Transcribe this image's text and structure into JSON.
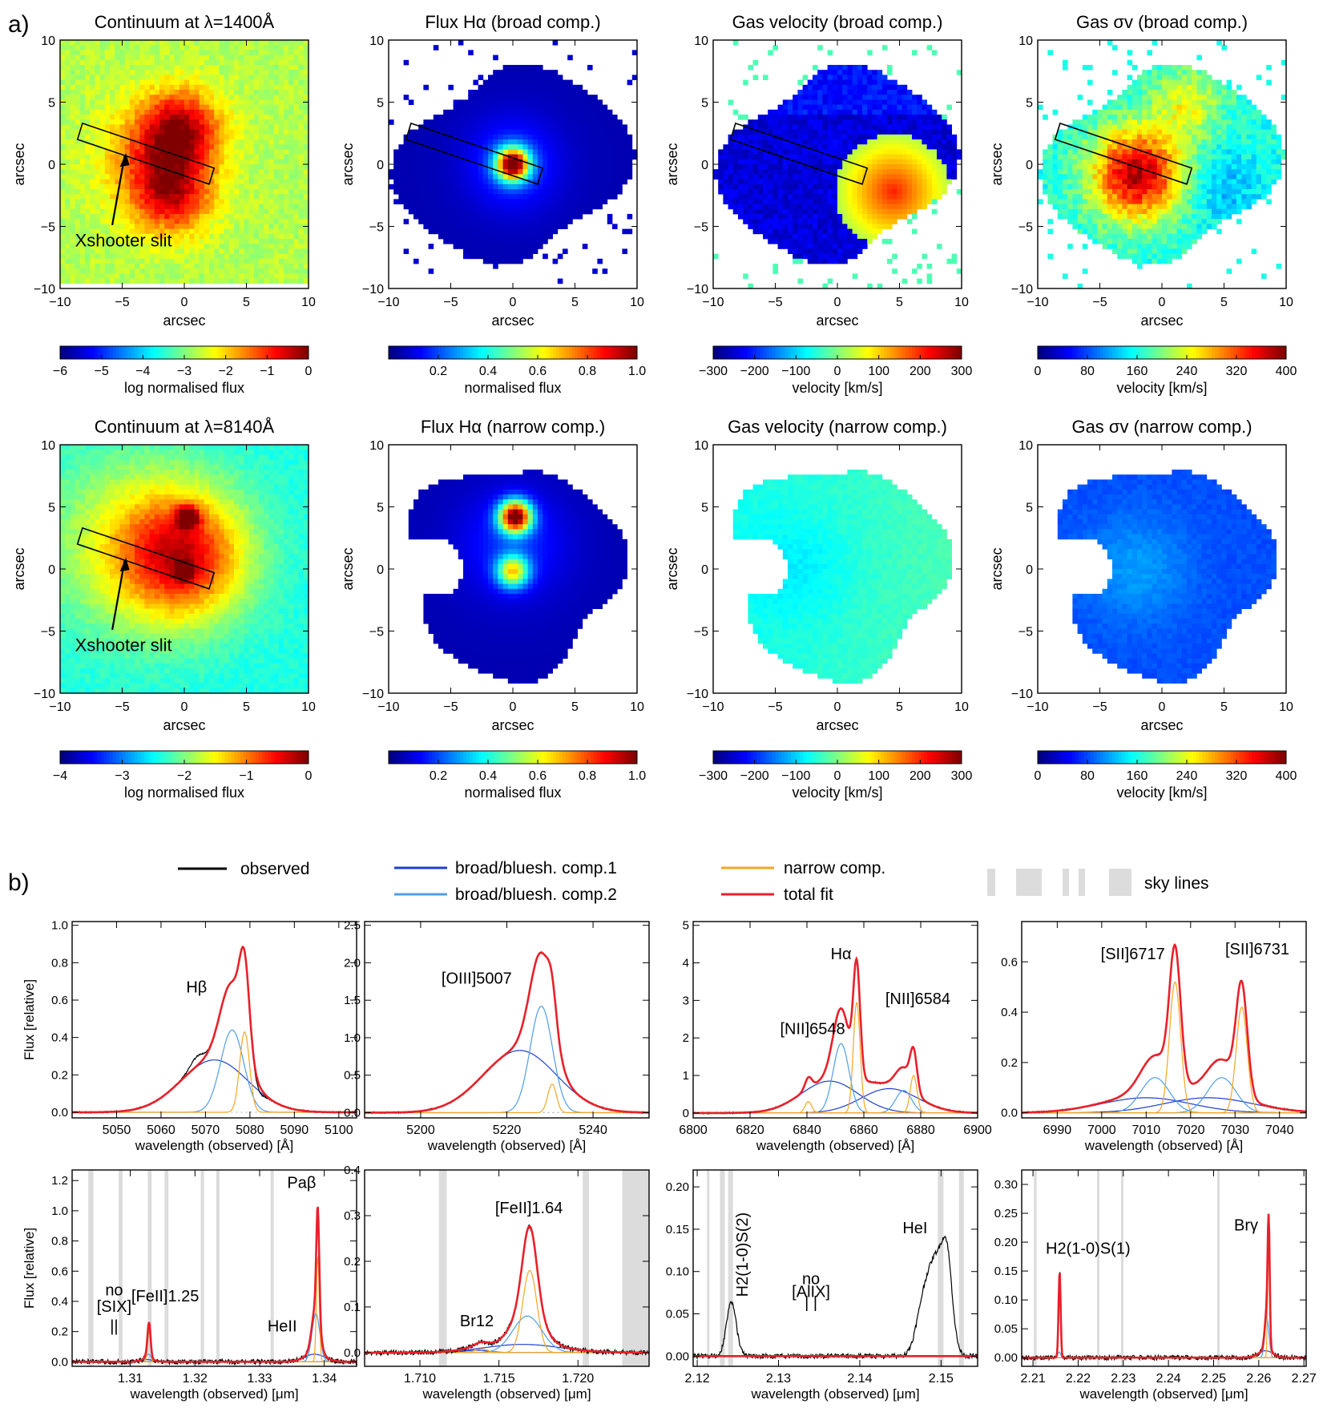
{
  "section_labels": {
    "a": "a)",
    "b": "b)"
  },
  "colors": {
    "observed": "#000000",
    "broad1": "#1f3fd0",
    "broad2": "#4f9ee8",
    "narrow": "#f5a623",
    "total": "#e8202a",
    "sky": "#dcdcdc"
  },
  "maps": {
    "axis_label": "arcsec",
    "ticks": [
      "−10",
      "−5",
      "0",
      "5",
      "10"
    ],
    "panels": [
      {
        "title": "Continuum at λ=1400Å",
        "kind": "cont_uv",
        "slit": true,
        "slit_label": "Xshooter slit"
      },
      {
        "title": "Flux Hα (broad comp.)",
        "kind": "flux_broad",
        "slit": true
      },
      {
        "title": "Gas velocity (broad comp.)",
        "kind": "vel_broad",
        "slit": true
      },
      {
        "title": "Gas σv (broad comp.)",
        "kind": "sig_broad",
        "slit": true
      },
      {
        "title": "Continuum at λ=8140Å",
        "kind": "cont_opt",
        "slit": true,
        "slit_label": "Xshooter slit"
      },
      {
        "title": "Flux Hα (narrow comp.)",
        "kind": "flux_narrow",
        "slit": false
      },
      {
        "title": "Gas velocity (narrow comp.)",
        "kind": "vel_narrow",
        "slit": false
      },
      {
        "title": "Gas σv (narrow comp.)",
        "kind": "sig_narrow",
        "slit": false
      }
    ],
    "colorbars": [
      {
        "label": "log normalised flux",
        "ticks": [
          "−6",
          "−5",
          "−4",
          "−3",
          "−2",
          "−1",
          "0"
        ]
      },
      {
        "label": "normalised flux",
        "ticks": [
          "0.2",
          "0.4",
          "0.6",
          "0.8",
          "1.0"
        ]
      },
      {
        "label": "velocity [km/s]",
        "ticks": [
          "−300",
          "−200",
          "−100",
          "0",
          "100",
          "200",
          "300"
        ]
      },
      {
        "label": "velocity [km/s]",
        "ticks": [
          "0",
          "80",
          "160",
          "240",
          "320",
          "400"
        ]
      },
      {
        "label": "log normalised flux",
        "ticks": [
          "−4",
          "−3",
          "−2",
          "−1",
          "0"
        ]
      },
      {
        "label": "normalised flux",
        "ticks": [
          "0.2",
          "0.4",
          "0.6",
          "0.8",
          "1.0"
        ]
      },
      {
        "label": "velocity [km/s]",
        "ticks": [
          "−300",
          "−200",
          "−100",
          "0",
          "100",
          "200",
          "300"
        ]
      },
      {
        "label": "velocity [km/s]",
        "ticks": [
          "0",
          "80",
          "160",
          "240",
          "320",
          "400"
        ]
      }
    ]
  },
  "legend": {
    "observed": "observed",
    "broad1": "broad/bluesh. comp.1",
    "broad2": "broad/bluesh. comp.2",
    "narrow": "narrow comp.",
    "total": "total fit",
    "sky": "sky lines"
  },
  "chart_data": [
    {
      "type": "line",
      "xlabel": "wavelength (observed) [Å]",
      "ylabel": "Flux [relative]",
      "xlim": [
        5040,
        5104
      ],
      "ylim": [
        -0.03,
        1.02
      ],
      "xticks": [
        5050,
        5060,
        5070,
        5080,
        5090,
        5100
      ],
      "xtick_labels": [
        "5050",
        "5060",
        "5070",
        "5080",
        "5090",
        "5100"
      ],
      "yticks": [
        0,
        0.2,
        0.4,
        0.6,
        0.8,
        1.0
      ],
      "ytick_labels": [
        "0.0",
        "0.2",
        "0.4",
        "0.6",
        "0.8",
        "1.0"
      ],
      "annotations": [
        {
          "text": "Hβ",
          "x": 5068,
          "y": 0.64
        }
      ],
      "components": {
        "broad1": [
          [
            0.28,
            5072,
            7.5
          ]
        ],
        "broad2": [
          [
            0.44,
            5076,
            2.6
          ]
        ],
        "narrow": [
          [
            0.43,
            5078.8,
            1.1
          ]
        ]
      },
      "sky": []
    },
    {
      "type": "line",
      "xlabel": "wavelength (observed) [Å]",
      "ylabel": "",
      "xlim": [
        5187,
        5253
      ],
      "ylim": [
        -0.07,
        2.55
      ],
      "xticks": [
        5200,
        5220,
        5240
      ],
      "xtick_labels": [
        "5200",
        "5220",
        "5240"
      ],
      "yticks": [
        0,
        0.5,
        1.0,
        1.5,
        2.0,
        2.5
      ],
      "ytick_labels": [
        "0.0",
        "0.5",
        "1.0",
        "1.5",
        "2.0",
        "2.5"
      ],
      "annotations": [
        {
          "text": "[OIII]5007",
          "x": 5213,
          "y": 1.72
        }
      ],
      "components": {
        "broad1": [
          [
            0.83,
            5223,
            8.5
          ]
        ],
        "broad2": [
          [
            1.42,
            5228,
            2.6
          ]
        ],
        "narrow": [
          [
            0.38,
            5230.5,
            1.0
          ]
        ]
      },
      "sky": []
    },
    {
      "type": "line",
      "xlabel": "wavelength (observed) [Å]",
      "ylabel": "",
      "xlim": [
        6800,
        6900
      ],
      "ylim": [
        -0.13,
        5.1
      ],
      "xticks": [
        6800,
        6820,
        6840,
        6860,
        6880,
        6900
      ],
      "xtick_labels": [
        "6800",
        "6820",
        "6840",
        "6860",
        "6880",
        "6900"
      ],
      "yticks": [
        0,
        1,
        2,
        3,
        4,
        5
      ],
      "ytick_labels": [
        "0",
        "1",
        "2",
        "3",
        "4",
        "5"
      ],
      "annotations": [
        {
          "text": "Hα",
          "x": 6852,
          "y": 4.1
        },
        {
          "text": "[NII]6548",
          "x": 6842,
          "y": 2.1
        },
        {
          "text": "[NII]6584",
          "x": 6879,
          "y": 2.9
        }
      ],
      "components": {
        "broad1": [
          [
            0.85,
            6848,
            10
          ],
          [
            0.65,
            6869,
            10
          ]
        ],
        "broad2": [
          [
            1.85,
            6852,
            2.8
          ],
          [
            0.6,
            6874,
            2.8
          ]
        ],
        "narrow": [
          [
            0.3,
            6840.5,
            1.2
          ],
          [
            2.95,
            6857.5,
            1.2
          ],
          [
            1.0,
            6877.5,
            1.2
          ]
        ]
      },
      "sky": []
    },
    {
      "type": "line",
      "xlabel": "wavelength (observed) [Å]",
      "ylabel": "",
      "xlim": [
        6982,
        7046
      ],
      "ylim": [
        -0.02,
        0.76
      ],
      "xticks": [
        6990,
        7000,
        7010,
        7020,
        7030,
        7040
      ],
      "xtick_labels": [
        "6990",
        "7000",
        "7010",
        "7020",
        "7030",
        "7040"
      ],
      "yticks": [
        0,
        0.2,
        0.4,
        0.6
      ],
      "ytick_labels": [
        "0.0",
        "0.2",
        "0.4",
        "0.6"
      ],
      "annotations": [
        {
          "text": "[SII]6717",
          "x": 7007,
          "y": 0.61
        },
        {
          "text": "[SII]6731",
          "x": 7035,
          "y": 0.63
        }
      ],
      "components": {
        "broad1": [
          [
            0.06,
            7010,
            10
          ],
          [
            0.06,
            7024,
            10
          ]
        ],
        "broad2": [
          [
            0.14,
            7012,
            3.2
          ],
          [
            0.14,
            7027,
            3.2
          ]
        ],
        "narrow": [
          [
            0.52,
            7016.5,
            1.25
          ],
          [
            0.42,
            7031.5,
            1.25
          ]
        ]
      },
      "sky": []
    },
    {
      "type": "line",
      "xlabel": "wavelength (observed) [μm]",
      "ylabel": "Flux [relative]",
      "xlim": [
        1.301,
        1.345
      ],
      "ylim": [
        -0.03,
        1.27
      ],
      "xticks": [
        1.31,
        1.32,
        1.33,
        1.34
      ],
      "xtick_labels": [
        "1.31",
        "1.32",
        "1.33",
        "1.34"
      ],
      "yticks": [
        0,
        0.2,
        0.4,
        0.6,
        0.8,
        1.0,
        1.2
      ],
      "ytick_labels": [
        "0.0",
        "0.2",
        "0.4",
        "0.6",
        "0.8",
        "1.0",
        "1.2"
      ],
      "annotations": [
        {
          "text": "Paβ",
          "x": 1.3365,
          "y": 1.15
        },
        {
          "text": "HeII",
          "x": 1.3335,
          "y": 0.2
        },
        {
          "text": "[FeII]1.25",
          "x": 1.3154,
          "y": 0.4
        },
        {
          "text": "no",
          "x": 1.3075,
          "y": 0.44
        },
        {
          "text": "[SIX]",
          "x": 1.3075,
          "y": 0.33
        },
        {
          "text": "||",
          "x": 1.3075,
          "y": 0.2
        }
      ],
      "components": {
        "broad1": [
          [
            0.05,
            1.3385,
            0.0016
          ],
          [
            0.015,
            1.3125,
            0.001
          ]
        ],
        "broad2": [
          [
            0.32,
            1.3387,
            0.0006
          ],
          [
            0.05,
            1.3128,
            0.0004
          ]
        ],
        "narrow": [
          [
            0.7,
            1.339,
            0.00022
          ],
          [
            0.2,
            1.3129,
            0.00022
          ]
        ]
      },
      "sky": [
        [
          1.3035,
          1.3043
        ],
        [
          1.3082,
          1.3088
        ],
        [
          1.3127,
          1.3133
        ],
        [
          1.3153,
          1.3159
        ],
        [
          1.3209,
          1.3214
        ],
        [
          1.3233,
          1.3238
        ],
        [
          1.3317,
          1.3322
        ]
      ]
    },
    {
      "type": "line",
      "xlabel": "wavelength (observed) [μm]",
      "ylabel": "",
      "xlim": [
        1.7065,
        1.7245
      ],
      "ylim": [
        -0.03,
        0.4
      ],
      "xticks": [
        1.71,
        1.715,
        1.72
      ],
      "xtick_labels": [
        "1.710",
        "1.715",
        "1.720"
      ],
      "yticks": [
        0,
        0.1,
        0.2,
        0.3,
        0.4
      ],
      "ytick_labels": [
        "0.0",
        "0.1",
        "0.2",
        "0.3",
        "0.4"
      ],
      "annotations": [
        {
          "text": "[FeII]1.64",
          "x": 1.7169,
          "y": 0.305
        },
        {
          "text": "Br12",
          "x": 1.7136,
          "y": 0.058
        }
      ],
      "components": {
        "broad1": [
          [
            0.018,
            1.7165,
            0.0024
          ],
          [
            0.005,
            1.7136,
            0.0008
          ]
        ],
        "broad2": [
          [
            0.08,
            1.7168,
            0.00092
          ]
        ],
        "narrow": [
          [
            0.18,
            1.71695,
            0.00045
          ],
          [
            0.008,
            1.7139,
            0.0004
          ]
        ]
      },
      "sky": [
        [
          1.7112,
          1.7117
        ],
        [
          1.7203,
          1.7207
        ],
        [
          1.7228,
          1.7245
        ]
      ]
    },
    {
      "type": "line",
      "xlabel": "wavelength (observed) [μm]",
      "ylabel": "",
      "xlim": [
        2.1195,
        2.1545
      ],
      "ylim": [
        -0.012,
        0.22
      ],
      "xticks": [
        2.12,
        2.13,
        2.14,
        2.15
      ],
      "xtick_labels": [
        "2.12",
        "2.13",
        "2.14",
        "2.15"
      ],
      "yticks": [
        0,
        0.05,
        0.1,
        0.15,
        0.2
      ],
      "ytick_labels": [
        "0.00",
        "0.05",
        "0.10",
        "0.15",
        "0.20"
      ],
      "annotations": [
        {
          "text": "H2(1-0)S(2)",
          "x": 2.1262,
          "y": 0.12
        },
        {
          "text": "HeI",
          "x": 2.1468,
          "y": 0.145
        },
        {
          "text": "no",
          "x": 2.134,
          "y": 0.085
        },
        {
          "text": "[AlIX]",
          "x": 2.134,
          "y": 0.07
        },
        {
          "text": "| |",
          "x": 2.134,
          "y": 0.057
        }
      ],
      "components": {
        "broad1": [],
        "broad2": [],
        "narrow": []
      },
      "sky": [
        [
          2.1212,
          2.1215
        ],
        [
          2.1228,
          2.1234
        ],
        [
          2.1238,
          2.1244
        ],
        [
          2.1496,
          2.1503
        ],
        [
          2.1522,
          2.1528
        ]
      ]
    },
    {
      "type": "line",
      "xlabel": "wavelength (observed) [μm]",
      "ylabel": "",
      "xlim": [
        2.2075,
        2.2705
      ],
      "ylim": [
        -0.015,
        0.325
      ],
      "xticks": [
        2.21,
        2.22,
        2.23,
        2.24,
        2.25,
        2.26,
        2.27
      ],
      "xtick_labels": [
        "2.21",
        "2.22",
        "2.23",
        "2.24",
        "2.25",
        "2.26",
        "2.27"
      ],
      "yticks": [
        0,
        0.05,
        0.1,
        0.15,
        0.2,
        0.25,
        0.3
      ],
      "ytick_labels": [
        "0.00",
        "0.05",
        "0.10",
        "0.15",
        "0.20",
        "0.25",
        "0.30"
      ],
      "annotations": [
        {
          "text": "Brγ",
          "x": 2.2572,
          "y": 0.22
        },
        {
          "text": "H2(1-0)S(1)",
          "x": 2.2222,
          "y": 0.18
        }
      ],
      "components": {
        "broad1": [
          [
            0.012,
            2.2615,
            0.0016
          ]
        ],
        "broad2": [
          [
            0.07,
            2.2618,
            0.00045
          ],
          [
            0.01,
            2.2158,
            0.0003
          ]
        ],
        "narrow": [
          [
            0.19,
            2.2622,
            0.00022
          ],
          [
            0.14,
            2.2159,
            0.00022
          ]
        ]
      },
      "sky": [
        [
          2.2102,
          2.2108
        ],
        [
          2.2242,
          2.2247
        ],
        [
          2.2295,
          2.23
        ],
        [
          2.2508,
          2.2513
        ]
      ]
    }
  ]
}
